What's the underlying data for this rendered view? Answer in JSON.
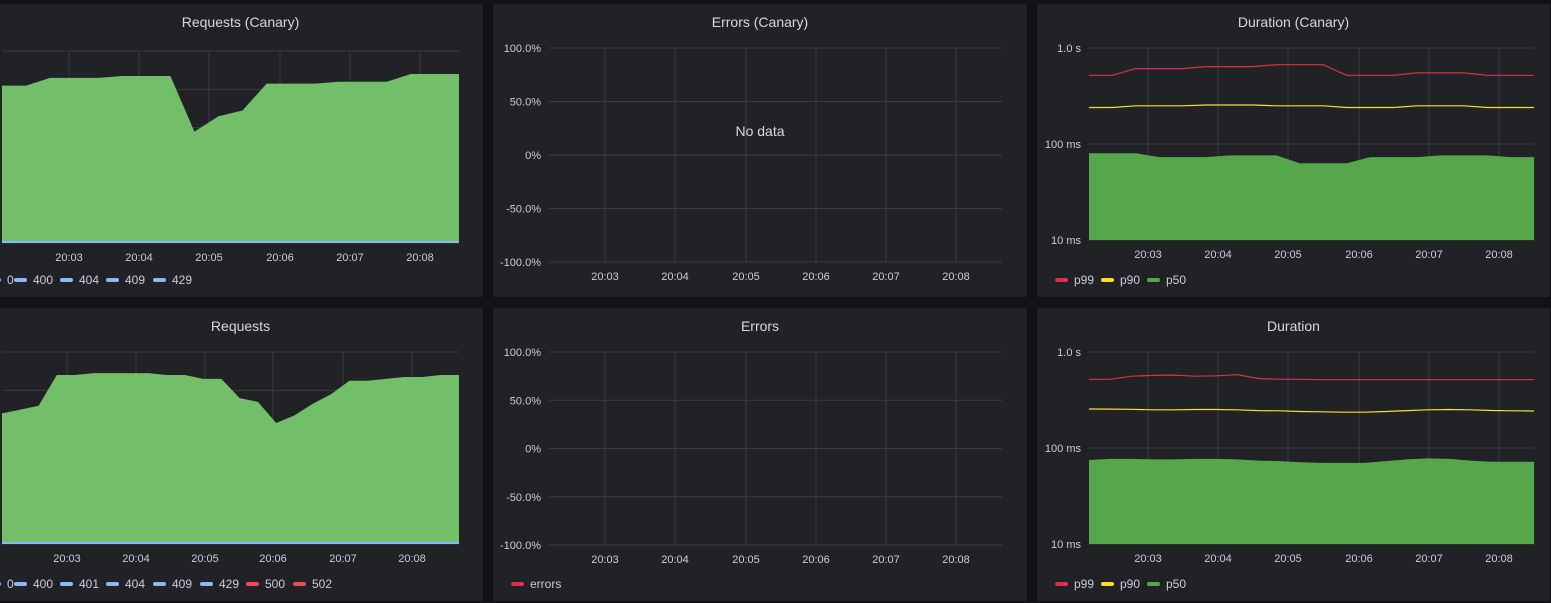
{
  "colors": {
    "green": "#73bf69",
    "green_dark": "#56a64b",
    "blue": "#8ab8ff",
    "red": "#f2495c",
    "red_line": "#e02f44",
    "yellow": "#fade2a",
    "grid": "#3a3c42"
  },
  "panels": [
    {
      "id": "p1",
      "title": "Requests (Canary)",
      "ylabels": [],
      "xlabels": [
        "20:03",
        "20:04",
        "20:05",
        "20:06",
        "20:07",
        "20:08"
      ],
      "legend": [
        {
          "label": "0",
          "color": "#8ab8ff"
        },
        {
          "label": "400",
          "color": "#8ab8ff"
        },
        {
          "label": "404",
          "color": "#8ab8ff"
        },
        {
          "label": "409",
          "color": "#8ab8ff"
        },
        {
          "label": "429",
          "color": "#8ab8ff"
        }
      ]
    },
    {
      "id": "p2",
      "title": "Errors (Canary)",
      "ylabels": [
        "100.0%",
        "50.0%",
        "0%",
        "-50.0%",
        "-100.0%"
      ],
      "xlabels": [
        "20:03",
        "20:04",
        "20:05",
        "20:06",
        "20:07",
        "20:08"
      ],
      "message": "No data",
      "legend": []
    },
    {
      "id": "p3",
      "title": "Duration (Canary)",
      "ylabels": [
        "1.0 s",
        "100 ms",
        "10 ms"
      ],
      "xlabels": [
        "20:03",
        "20:04",
        "20:05",
        "20:06",
        "20:07",
        "20:08"
      ],
      "legend": [
        {
          "label": "p99",
          "color": "#e02f44"
        },
        {
          "label": "p90",
          "color": "#fade2a"
        },
        {
          "label": "p50",
          "color": "#56a64b"
        }
      ]
    },
    {
      "id": "p4",
      "title": "Requests",
      "ylabels": [
        "s",
        "s",
        "s",
        "s",
        "s",
        "s"
      ],
      "xlabels": [
        "20:03",
        "20:04",
        "20:05",
        "20:06",
        "20:07",
        "20:08"
      ],
      "legend": [
        {
          "label": "0",
          "color": "#8ab8ff"
        },
        {
          "label": "400",
          "color": "#8ab8ff"
        },
        {
          "label": "401",
          "color": "#8ab8ff"
        },
        {
          "label": "404",
          "color": "#8ab8ff"
        },
        {
          "label": "409",
          "color": "#8ab8ff"
        },
        {
          "label": "429",
          "color": "#8ab8ff"
        },
        {
          "label": "500",
          "color": "#f2495c"
        },
        {
          "label": "502",
          "color": "#f2495c"
        }
      ]
    },
    {
      "id": "p5",
      "title": "Errors",
      "ylabels": [
        "100.0%",
        "50.0%",
        "0%",
        "-50.0%",
        "-100.0%"
      ],
      "xlabels": [
        "20:03",
        "20:04",
        "20:05",
        "20:06",
        "20:07",
        "20:08"
      ],
      "legend": [
        {
          "label": "errors",
          "color": "#e02f44"
        }
      ]
    },
    {
      "id": "p6",
      "title": "Duration",
      "ylabels": [
        "1.0 s",
        "100 ms",
        "10 ms"
      ],
      "xlabels": [
        "20:03",
        "20:04",
        "20:05",
        "20:06",
        "20:07",
        "20:08"
      ],
      "legend": [
        {
          "label": "p99",
          "color": "#e02f44"
        },
        {
          "label": "p90",
          "color": "#fade2a"
        },
        {
          "label": "p50",
          "color": "#56a64b"
        }
      ]
    }
  ],
  "series": {
    "p1_requests": [
      0.82,
      0.82,
      0.86,
      0.86,
      0.86,
      0.87,
      0.87,
      0.87,
      0.58,
      0.66,
      0.69,
      0.83,
      0.83,
      0.83,
      0.84,
      0.84,
      0.84,
      0.88,
      0.88,
      0.88
    ],
    "p3_p99_ms": [
      520,
      520,
      610,
      610,
      610,
      640,
      640,
      640,
      670,
      670,
      670,
      520,
      520,
      520,
      550,
      550,
      550,
      520,
      520,
      520
    ],
    "p3_p90_ms": [
      240,
      240,
      250,
      250,
      250,
      255,
      255,
      255,
      250,
      250,
      250,
      240,
      240,
      240,
      250,
      250,
      250,
      240,
      240,
      240
    ],
    "p3_p50_ms": [
      80,
      80,
      80,
      73,
      73,
      73,
      76,
      76,
      76,
      63,
      63,
      63,
      73,
      73,
      73,
      76,
      76,
      76,
      73,
      73
    ],
    "p4_requests": [
      0.68,
      0.7,
      0.72,
      0.88,
      0.88,
      0.89,
      0.89,
      0.89,
      0.89,
      0.88,
      0.88,
      0.86,
      0.86,
      0.76,
      0.74,
      0.63,
      0.67,
      0.73,
      0.78,
      0.85,
      0.85,
      0.86,
      0.87,
      0.87,
      0.88,
      0.88
    ],
    "p6_p99_ms": [
      520,
      520,
      560,
      570,
      575,
      560,
      565,
      580,
      530,
      520,
      520,
      515,
      515,
      515,
      515,
      515,
      515,
      515,
      515,
      515,
      515,
      515
    ],
    "p6_p90_ms": [
      255,
      254,
      253,
      250,
      250,
      252,
      252,
      250,
      245,
      244,
      240,
      238,
      236,
      236,
      240,
      245,
      250,
      252,
      250,
      246,
      244,
      243
    ],
    "p6_p50_ms": [
      75,
      77,
      77,
      76,
      76,
      77,
      77,
      76,
      74,
      73,
      71,
      70,
      70,
      70,
      73,
      76,
      78,
      77,
      74,
      72,
      72,
      72
    ]
  }
}
